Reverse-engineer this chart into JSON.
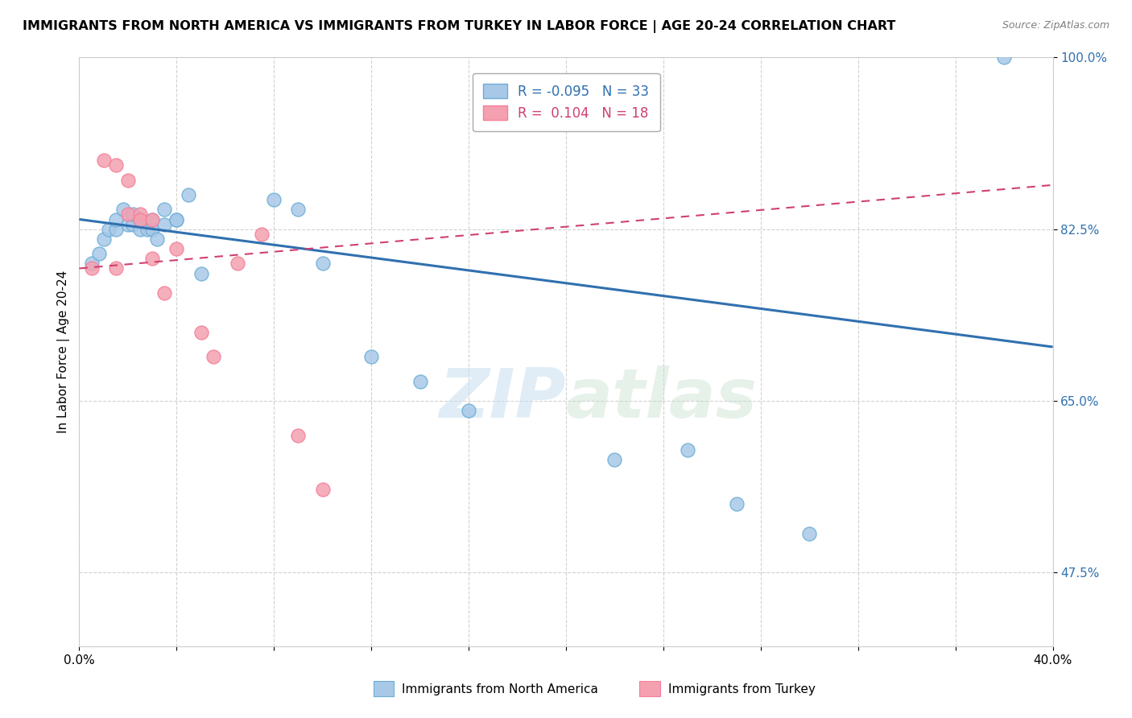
{
  "title": "IMMIGRANTS FROM NORTH AMERICA VS IMMIGRANTS FROM TURKEY IN LABOR FORCE | AGE 20-24 CORRELATION CHART",
  "source": "Source: ZipAtlas.com",
  "xlabel_blue": "Immigrants from North America",
  "xlabel_pink": "Immigrants from Turkey",
  "ylabel": "In Labor Force | Age 20-24",
  "xmin": 0.0,
  "xmax": 0.4,
  "ymin": 0.4,
  "ymax": 1.0,
  "blue_R": -0.095,
  "blue_N": 33,
  "pink_R": 0.104,
  "pink_N": 18,
  "blue_color": "#a8c8e8",
  "pink_color": "#f4a0b0",
  "blue_edge_color": "#6baed6",
  "pink_edge_color": "#f48098",
  "blue_line_color": "#3070b0",
  "pink_line_color": "#d04070",
  "watermark_color": "#d8e8f0",
  "blue_scatter_x": [
    0.005,
    0.008,
    0.01,
    0.012,
    0.015,
    0.015,
    0.018,
    0.02,
    0.022,
    0.022,
    0.025,
    0.025,
    0.028,
    0.03,
    0.03,
    0.032,
    0.035,
    0.035,
    0.04,
    0.04,
    0.045,
    0.05,
    0.08,
    0.09,
    0.1,
    0.12,
    0.14,
    0.16,
    0.22,
    0.25,
    0.27,
    0.3,
    0.38
  ],
  "blue_scatter_y": [
    0.79,
    0.8,
    0.815,
    0.825,
    0.825,
    0.835,
    0.845,
    0.83,
    0.83,
    0.84,
    0.825,
    0.835,
    0.825,
    0.825,
    0.835,
    0.815,
    0.845,
    0.83,
    0.835,
    0.835,
    0.86,
    0.78,
    0.855,
    0.845,
    0.79,
    0.695,
    0.67,
    0.64,
    0.59,
    0.6,
    0.545,
    0.515,
    1.0
  ],
  "pink_scatter_x": [
    0.005,
    0.01,
    0.015,
    0.015,
    0.02,
    0.02,
    0.025,
    0.025,
    0.03,
    0.03,
    0.035,
    0.04,
    0.05,
    0.055,
    0.065,
    0.075,
    0.09,
    0.1
  ],
  "pink_scatter_y": [
    0.785,
    0.895,
    0.89,
    0.785,
    0.84,
    0.875,
    0.84,
    0.835,
    0.835,
    0.795,
    0.76,
    0.805,
    0.72,
    0.695,
    0.79,
    0.82,
    0.615,
    0.56
  ]
}
